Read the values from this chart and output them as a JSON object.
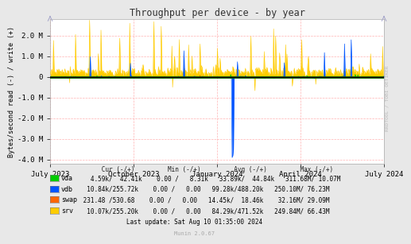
{
  "title": "Throughput per device - by year",
  "ylabel": "Bytes/second read (-) / write (+)",
  "background_color": "#e8e8e8",
  "plot_background": "#ffffff",
  "grid_color": "#ffaaaa",
  "ylim": [
    -4200000,
    2800000
  ],
  "yticks": [
    -4000000,
    -3000000,
    -2000000,
    -1000000,
    0,
    1000000,
    2000000
  ],
  "ytick_labels": [
    "-4.0 M",
    "-3.0 M",
    "-2.0 M",
    "-1.0 M",
    "0",
    "1.0 M",
    "2.0 M"
  ],
  "xtick_labels": [
    "July 2023",
    "October 2023",
    "January 2024",
    "April 2024",
    "July 2024"
  ],
  "colors": {
    "vda": "#00cc00",
    "vdb": "#0055ff",
    "swap": "#ff6600",
    "srv": "#ffcc00"
  },
  "legend_names": [
    "vda",
    "vdb",
    "swap",
    "srv"
  ],
  "table_header": "              Cur (-/+)         Min (-/+)         Avg (-/+)         Max (-/+)",
  "table_rows": [
    "   4.59k/  42.41k    0.00 /   8.31k   33.89k/  44.84k   311.68M/ 10.07M",
    "  10.84k/255.72k    0.00 /   0.00   99.28k/488.20k   250.10M/ 76.23M",
    " 231.48 /530.68    0.00 /   0.00   14.45k/  18.46k    32.16M/ 29.09M",
    "  10.07k/255.20k    0.00 /   0.00   84.29k/471.52k   249.84M/ 66.43M"
  ],
  "last_update": "Last update: Sat Aug 10 01:35:00 2024",
  "munin_version": "Munin 2.0.67",
  "watermark": "RRDTOOL / TOBI OETIKER"
}
